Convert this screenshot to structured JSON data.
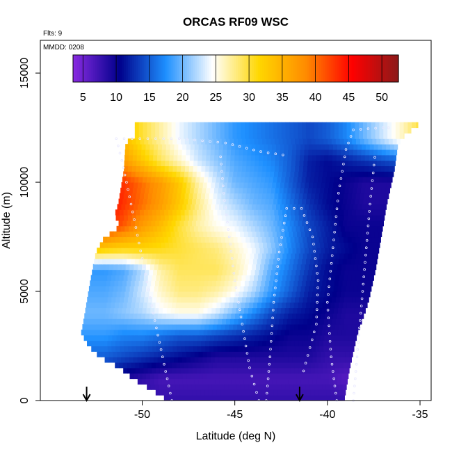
{
  "chart_data": {
    "type": "heatmap",
    "title": "ORCAS RF09 WSC",
    "annotations": {
      "flights": "Flts: 9",
      "date": "MMDD: 0208"
    },
    "xlabel": "Latitude (deg N)",
    "ylabel": "Altitude (m)",
    "xlim": [
      -55.5,
      -34.4
    ],
    "ylim": [
      0,
      16500
    ],
    "x_ticks": [
      -50,
      -45,
      -40,
      -35
    ],
    "y_ticks": [
      0,
      5000,
      10000,
      15000
    ],
    "x_tick_labels": [
      "-50",
      "-45",
      "-40",
      "-35"
    ],
    "y_tick_labels": [
      "0",
      "5000",
      "10000",
      "15000"
    ],
    "colorbar": {
      "range": [
        3.5,
        52.5
      ],
      "ticks": [
        5,
        10,
        15,
        20,
        25,
        30,
        35,
        40,
        45,
        50
      ],
      "tick_labels": [
        "5",
        "10",
        "15",
        "20",
        "25",
        "30",
        "35",
        "40",
        "45",
        "50"
      ],
      "colors": [
        "#8a2be2",
        "#00008b",
        "#1e90ff",
        "#ffffff",
        "#ffd700",
        "#ff8c00",
        "#ff0000",
        "#8b1a1a"
      ]
    },
    "field": {
      "latitude_grid": [
        -53,
        -52,
        -51,
        -50,
        -49,
        -48,
        -47,
        -46,
        -45,
        -44,
        -43,
        -42,
        -41,
        -40,
        -39,
        -38,
        -37,
        -36,
        -35
      ],
      "altitude_levels_m": [
        0,
        1000,
        2000,
        3000,
        4000,
        5000,
        6000,
        7000,
        8000,
        9000,
        10000,
        11000,
        12000
      ],
      "wind_speed": [
        [
          8,
          8,
          8,
          8,
          8,
          8,
          8,
          8,
          8,
          8,
          8,
          8,
          8,
          8,
          8,
          8,
          8,
          8,
          8
        ],
        [
          11,
          11,
          9,
          8,
          7,
          7,
          7,
          7,
          7,
          7,
          7,
          7,
          7,
          7,
          6,
          7,
          7,
          7,
          7
        ],
        [
          15,
          15,
          14,
          13,
          12,
          11,
          10,
          9,
          9,
          9,
          9,
          9,
          9,
          8,
          8,
          8,
          8,
          8,
          8
        ],
        [
          18,
          18,
          17,
          17,
          16,
          15,
          15,
          14,
          13,
          12,
          11,
          10,
          10,
          9,
          9,
          9,
          9,
          9,
          9
        ],
        [
          20,
          20,
          21,
          22,
          24,
          25,
          25,
          23,
          20,
          17,
          14,
          12,
          11,
          10,
          9,
          9,
          9,
          9,
          9
        ],
        [
          19,
          19,
          20,
          23,
          26,
          28,
          28,
          27,
          25,
          22,
          18,
          15,
          12,
          11,
          10,
          10,
          10,
          10,
          10
        ],
        [
          18,
          18,
          19,
          22,
          27,
          29,
          29,
          29,
          27,
          24,
          19,
          16,
          13,
          11,
          10,
          10,
          10,
          10,
          10
        ],
        [
          34,
          33,
          32,
          32,
          31,
          30,
          29,
          28,
          26,
          24,
          21,
          17,
          14,
          12,
          11,
          10,
          10,
          10,
          10
        ],
        [
          45,
          44,
          41,
          37,
          34,
          30,
          27,
          25,
          24,
          22,
          20,
          17,
          14,
          12,
          10,
          10,
          10,
          10,
          10
        ],
        [
          46,
          46,
          43,
          40,
          37,
          33,
          28,
          24,
          22,
          20,
          19,
          16,
          13,
          11,
          10,
          9,
          9,
          9,
          9
        ],
        [
          47,
          46,
          43,
          40,
          37,
          33,
          27,
          23,
          20,
          19,
          18,
          15,
          12,
          11,
          10,
          9,
          9,
          9,
          9
        ],
        [
          40,
          39,
          37,
          33,
          29,
          26,
          23,
          21,
          19,
          18,
          17,
          15,
          12,
          11,
          12,
          13,
          14,
          15,
          16
        ],
        [
          36,
          36,
          34,
          30,
          27,
          24,
          22,
          20,
          18,
          17,
          16,
          15,
          14,
          15,
          17,
          20,
          23,
          26,
          30
        ]
      ]
    },
    "sounding_markers_latitude": [
      -53,
      -41.5
    ]
  }
}
